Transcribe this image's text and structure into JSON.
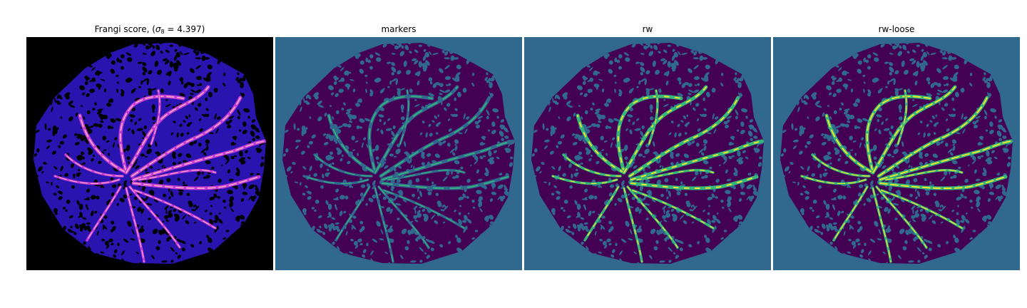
{
  "panels": [
    {
      "title_prefix": "Frangi score, (",
      "title_sigma": "σ",
      "title_sub": "8",
      "title_suffix": " = 4.397)",
      "colormap": "magma",
      "colors": {
        "background": "#000000",
        "blob": "#2a14b0",
        "hole": "#000000",
        "vessel": "#c33bd6",
        "vessel_hot": "#f5a2c4"
      }
    },
    {
      "title": "markers",
      "colormap": "viridis",
      "colors": {
        "background": "#31688e",
        "blob": "#440154",
        "hole": "#31688e",
        "vessel": "#31688e",
        "vessel_hot": "#35b779"
      }
    },
    {
      "title": "rw",
      "colormap": "viridis",
      "colors": {
        "background": "#31688e",
        "blob": "#440154",
        "hole": "#31688e",
        "vessel": "#35b779",
        "vessel_hot": "#fde725"
      }
    },
    {
      "title": "rw-loose",
      "colormap": "viridis",
      "colors": {
        "background": "#31688e",
        "blob": "#440154",
        "hole": "#31688e",
        "vessel": "#35b779",
        "vessel_hot": "#fde725"
      }
    }
  ]
}
